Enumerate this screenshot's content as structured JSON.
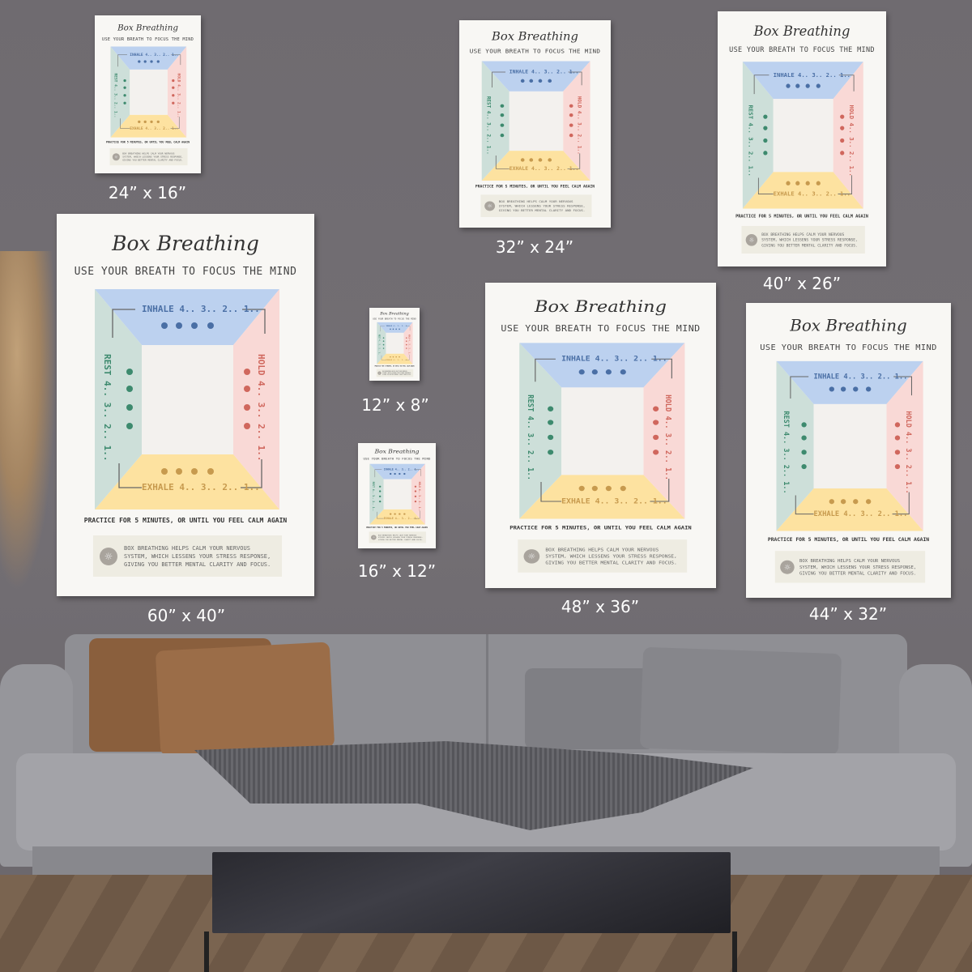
{
  "poster": {
    "title": "Box Breathing",
    "subtitle": "USE YOUR BREATH TO FOCUS THE MIND",
    "inhale": "INHALE 4.. 3.. 2.. 1..",
    "hold": "HOLD 4.. 3.. 2.. 1..",
    "exhale": "EXHALE 4.. 3.. 2.. 1..",
    "rest": "REST 4.. 3.. 2.. 1..",
    "practice": "PRACTICE FOR 5 MINUTES, OR UNTIL YOU FEEL CALM AGAIN",
    "info": "BOX BREATHING HELPS CALM YOUR NERVOUS SYSTEM, WHICH LESSENS YOUR STRESS RESPONSE, GIVING YOU BETTER MENTAL CLARITY AND FOCUS.",
    "icon": "lightbulb-icon",
    "colors": {
      "inhale": "#bcd1ef",
      "hold": "#f9d9d6",
      "exhale": "#fde2a0",
      "rest": "#cddfd9",
      "inhale_dot": "#4a6fa5",
      "hold_dot": "#d0675d",
      "exhale_dot": "#c79a4e",
      "rest_dot": "#3d8a6e"
    }
  },
  "sizes": [
    "24” x 16”",
    "32” x 24”",
    "40” x 26”",
    "60” x 40”",
    "12” x 8”",
    "16” x 12”",
    "48” x 36”",
    "44” x 32”"
  ]
}
